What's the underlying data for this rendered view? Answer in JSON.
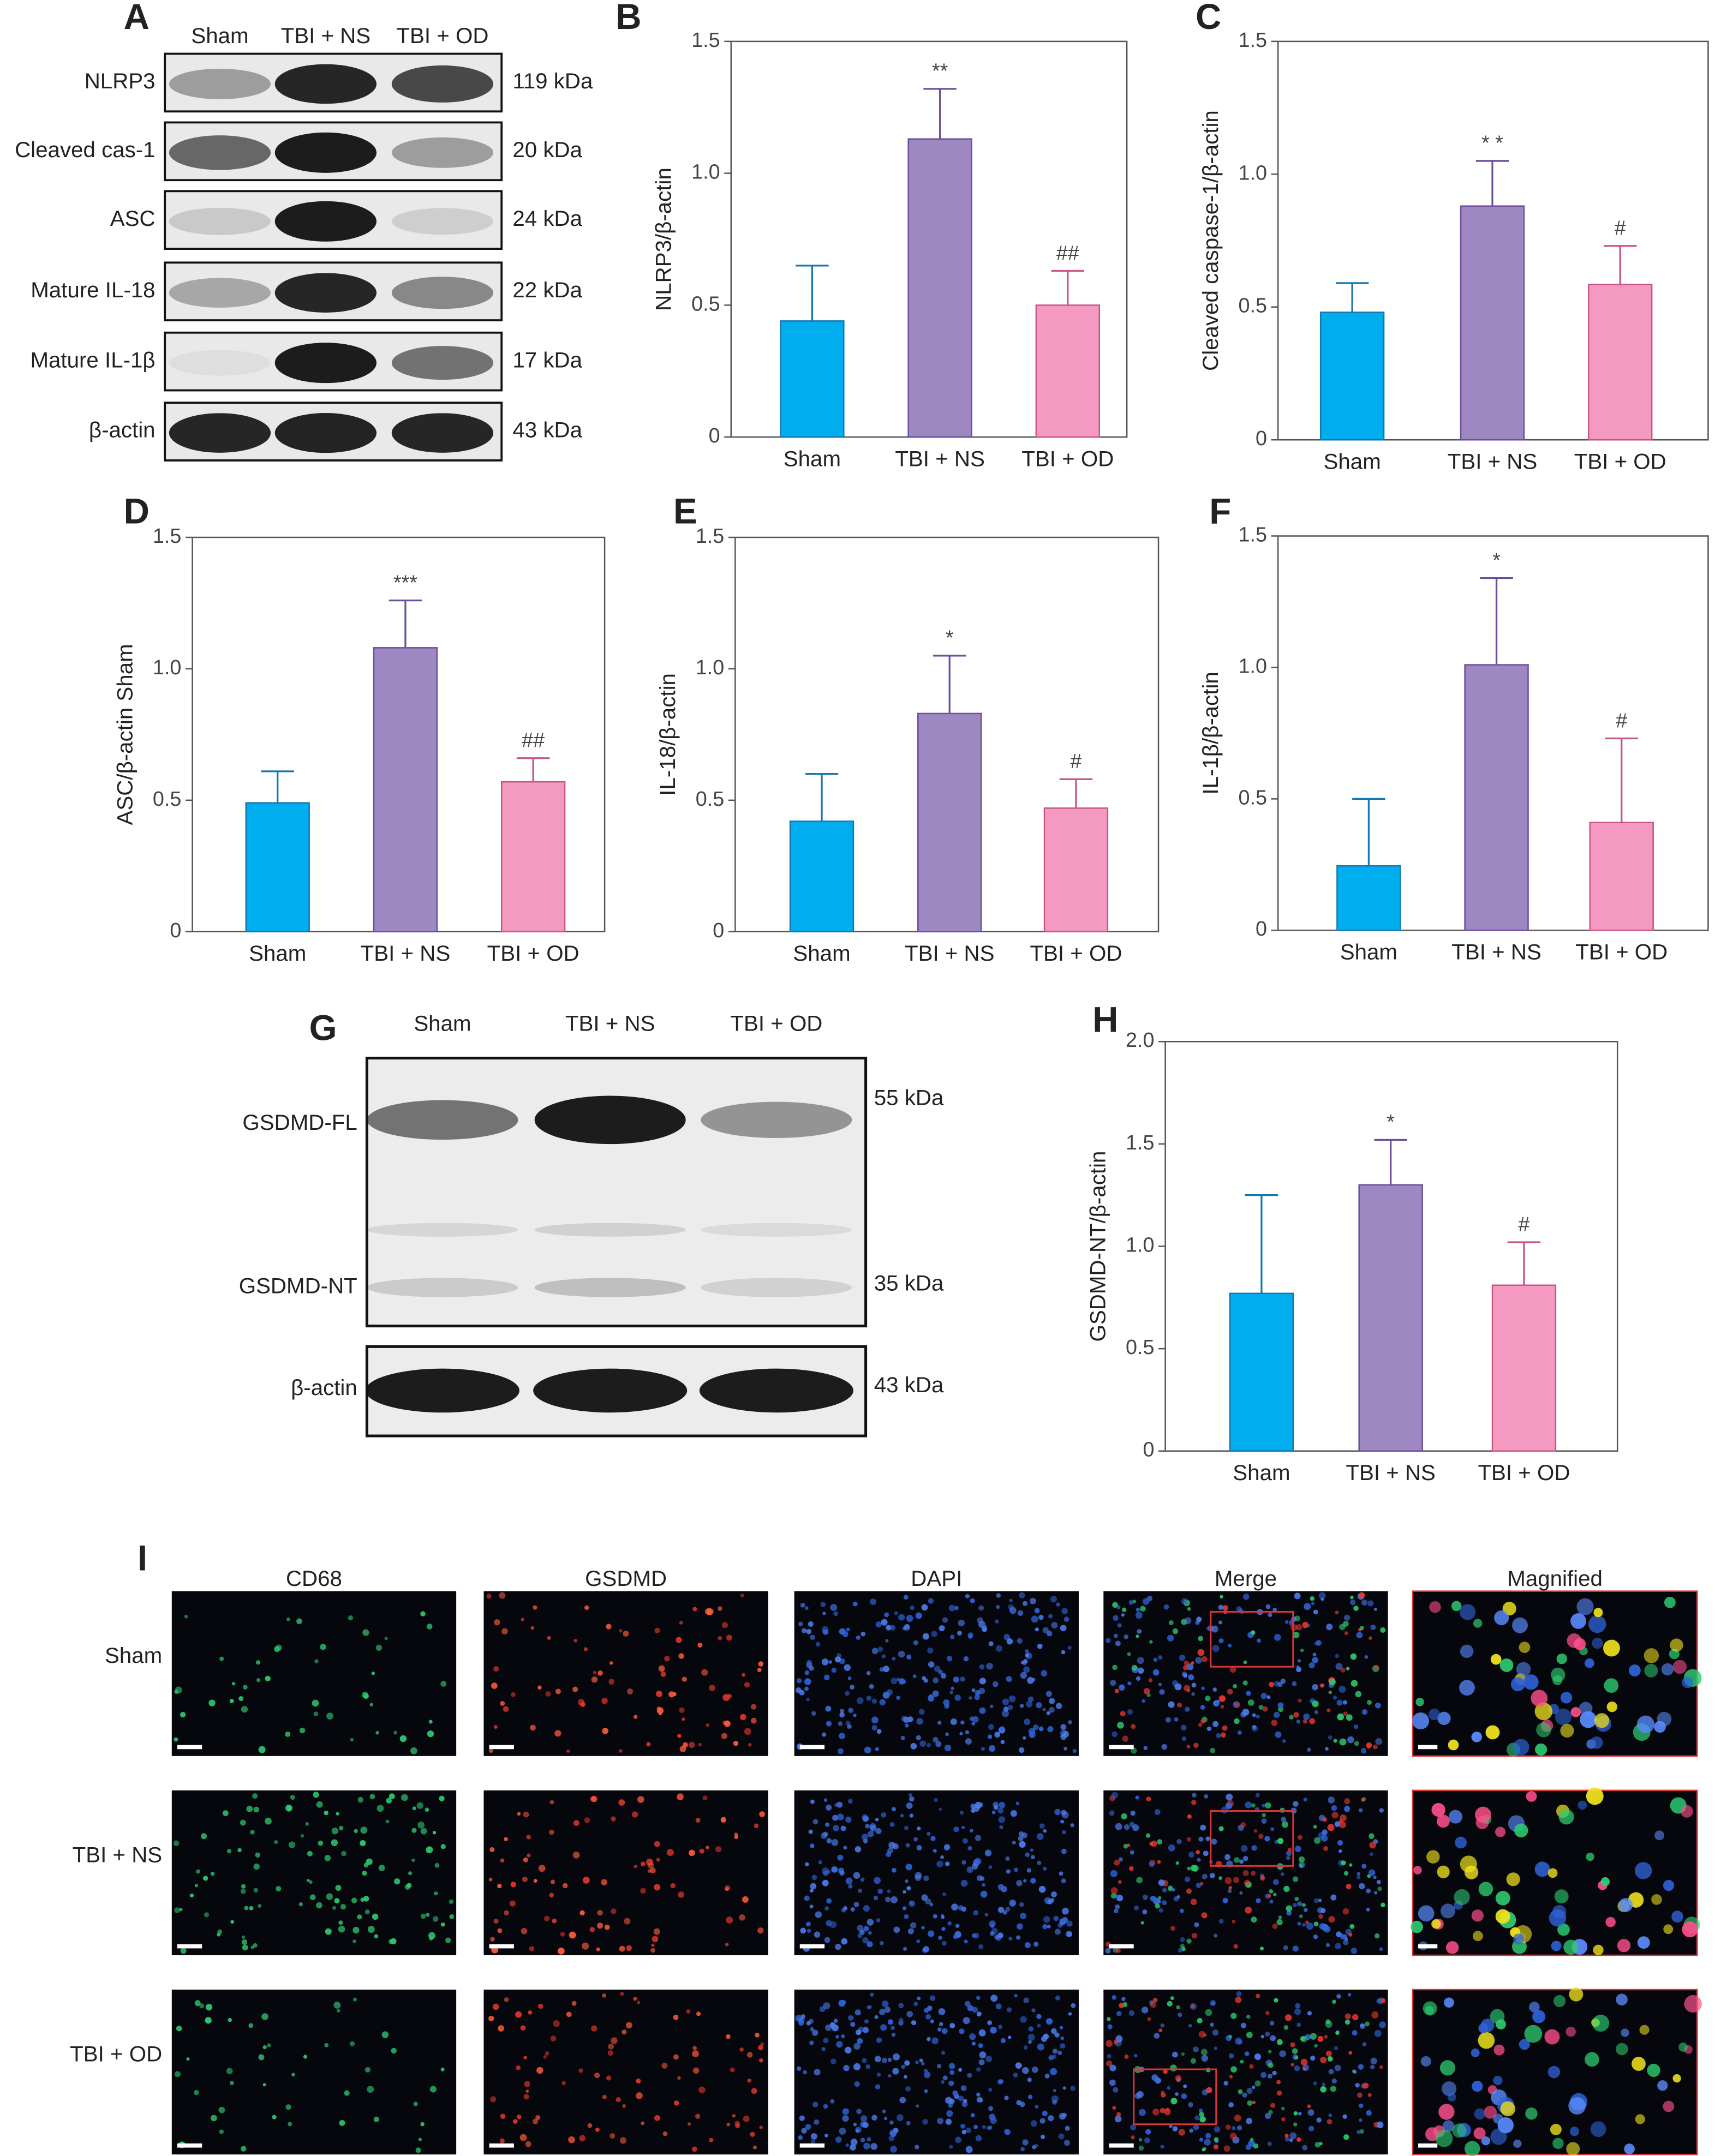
{
  "blot_a": {
    "panel": "A",
    "lanes": [
      "Sham",
      "TBI + NS",
      "TBI + OD"
    ],
    "rows": [
      {
        "label": "NLRP3",
        "size": "119 kDa"
      },
      {
        "label": "Cleaved cas-1",
        "size": "20 kDa"
      },
      {
        "label": "ASC",
        "size": "24 kDa"
      },
      {
        "label": "Mature IL-18",
        "size": "22 kDa"
      },
      {
        "label": "Mature IL-1β",
        "size": "17 kDa"
      },
      {
        "label": "β-actin",
        "size": "43 kDa"
      }
    ]
  },
  "blot_g": {
    "panel": "G",
    "lanes": [
      "Sham",
      "TBI + NS",
      "TBI + OD"
    ],
    "rows": [
      {
        "label": "GSDMD-FL",
        "size": "55 kDa"
      },
      {
        "label": "GSDMD-NT",
        "size": "35 kDa"
      },
      {
        "label": "β-actin",
        "size": "43 kDa"
      }
    ]
  },
  "microscopy": {
    "panel": "I",
    "columns": [
      "CD68",
      "GSDMD",
      "DAPI",
      "Merge",
      "Magnified"
    ],
    "rows": [
      "Sham",
      "TBI + NS",
      "TBI + OD"
    ]
  },
  "chart_data": [
    {
      "type": "bar",
      "panel": "B",
      "y_label": "NLRP3/β-actin",
      "categories": [
        "Sham",
        "TBI + NS",
        "TBI + OD"
      ],
      "values": [
        0.44,
        1.13,
        0.5
      ],
      "errors": [
        0.21,
        0.19,
        0.13
      ],
      "annotations": [
        null,
        "**",
        "##"
      ],
      "colors": [
        "#00aeef",
        "#9e88c2",
        "#f49ac1"
      ],
      "ylim": [
        0,
        1.5
      ],
      "yticks": [
        0,
        0.5,
        {
          "value": 1,
          "label": "1.0"
        },
        1.5
      ]
    },
    {
      "type": "bar",
      "panel": "C",
      "y_label": "Cleaved caspase-1/β-actin",
      "categories": [
        "Sham",
        "TBI + NS",
        "TBI + OD"
      ],
      "values": [
        0.48,
        0.88,
        0.585
      ],
      "errors": [
        0.11,
        0.17,
        0.145
      ],
      "annotations": [
        null,
        "* *",
        "#"
      ],
      "colors": [
        "#00aeef",
        "#9e88c2",
        "#f49ac1"
      ],
      "ylim": [
        0,
        1.5
      ],
      "yticks": [
        0,
        0.5,
        {
          "value": 1,
          "label": "1.0"
        },
        1.5
      ]
    },
    {
      "type": "bar",
      "panel": "D",
      "y_label": "ASC/β-actin Sham",
      "categories": [
        "Sham",
        "TBI + NS",
        "TBI + OD"
      ],
      "values": [
        0.49,
        1.08,
        0.57
      ],
      "errors": [
        0.12,
        0.18,
        0.09
      ],
      "annotations": [
        null,
        "***",
        "##"
      ],
      "colors": [
        "#00aeef",
        "#9e88c2",
        "#f49ac1"
      ],
      "ylim": [
        0,
        1.5
      ],
      "yticks": [
        0,
        0.5,
        {
          "value": 1,
          "label": "1.0"
        },
        1.5
      ]
    },
    {
      "type": "bar",
      "panel": "E",
      "y_label": "IL-18/β-actin",
      "categories": [
        "Sham",
        "TBI + NS",
        "TBI + OD"
      ],
      "values": [
        0.42,
        0.83,
        0.47
      ],
      "errors": [
        0.18,
        0.22,
        0.11
      ],
      "annotations": [
        null,
        "*",
        "#"
      ],
      "colors": [
        "#00aeef",
        "#9e88c2",
        "#f49ac1"
      ],
      "ylim": [
        0,
        1.5
      ],
      "yticks": [
        0,
        0.5,
        {
          "value": 1,
          "label": "1.0"
        },
        1.5
      ]
    },
    {
      "type": "bar",
      "panel": "F",
      "y_label": "IL-1β/β-actin",
      "categories": [
        "Sham",
        "TBI + NS",
        "TBI + OD"
      ],
      "values": [
        0.245,
        1.01,
        0.41
      ],
      "errors": [
        0.255,
        0.33,
        0.32
      ],
      "annotations": [
        null,
        "*",
        "#"
      ],
      "colors": [
        "#00aeef",
        "#9e88c2",
        "#f49ac1"
      ],
      "ylim": [
        0,
        1.5
      ],
      "yticks": [
        0,
        0.5,
        {
          "value": 1,
          "label": "1.0"
        },
        1.5
      ]
    },
    {
      "type": "bar",
      "panel": "H",
      "y_label": "GSDMD-NT/β-actin",
      "categories": [
        "Sham",
        "TBI + NS",
        "TBI + OD"
      ],
      "values": [
        0.77,
        1.3,
        0.81
      ],
      "errors": [
        0.48,
        0.22,
        0.21
      ],
      "annotations": [
        null,
        "*",
        "#"
      ],
      "colors": [
        "#00aeef",
        "#9e88c2",
        "#f49ac1"
      ],
      "ylim": [
        0,
        2
      ],
      "yticks": [
        0,
        0.5,
        {
          "value": 1,
          "label": "1.0"
        },
        1.5,
        {
          "value": 2,
          "label": "2.0"
        }
      ]
    }
  ]
}
